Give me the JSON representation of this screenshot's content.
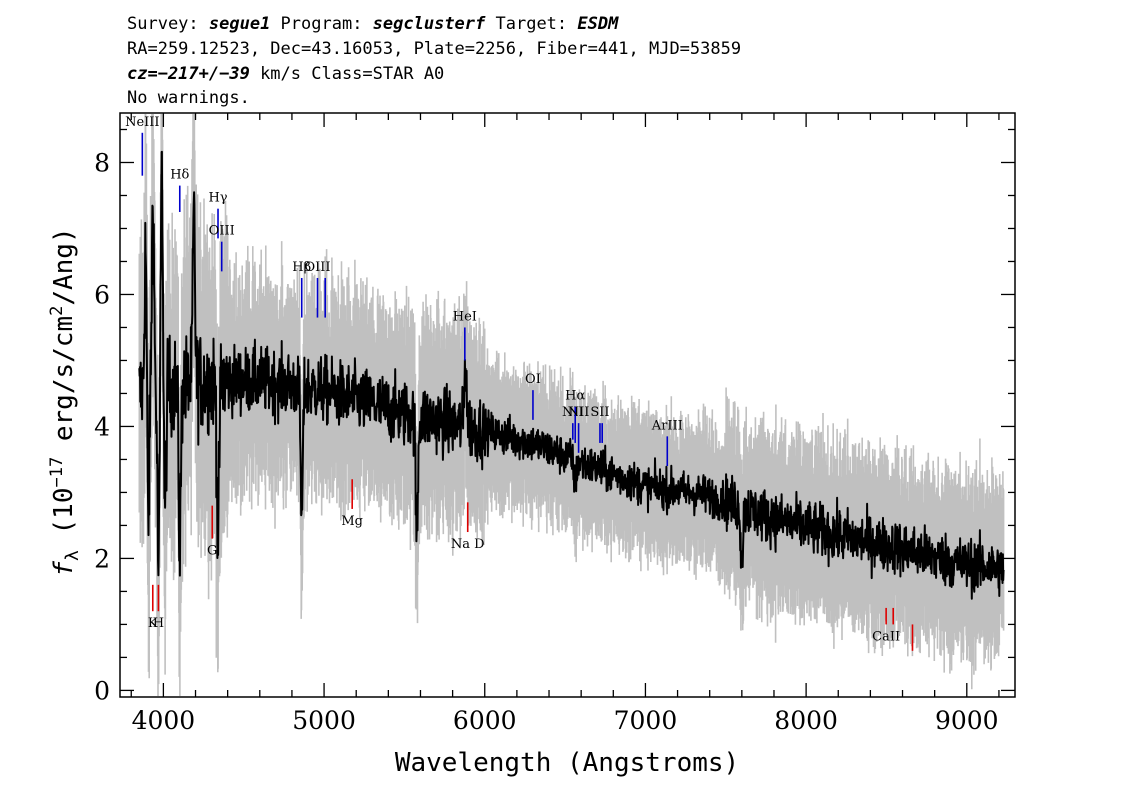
{
  "header": {
    "line1": {
      "survey_label": "Survey: ",
      "survey": "segue1",
      "program_label": " Program: ",
      "program": "segclusterf",
      "target_label": " Target: ",
      "target": "ESDM"
    },
    "line2": "RA=259.12523, Dec=43.16053, Plate=2256, Fiber=441, MJD=53859",
    "line3": {
      "cz": "cz=−217+/−39",
      "rest": " km/s Class=STAR A0"
    },
    "line4": "No warnings."
  },
  "colors": {
    "flux": "#000000",
    "error": "#c0c0c0",
    "emission": "#0000cc",
    "absorption": "#dd0000"
  },
  "chart_data": {
    "type": "line",
    "xlabel": "Wavelength (Angstroms)",
    "ylabel": "f_λ (10^-17 erg/s/cm^2/Ang)",
    "ylabel_parts": {
      "f": "f",
      "sub": "λ",
      "pre": " (10",
      "exp": "−17",
      "mid": " erg/s/cm",
      "exp2": "2",
      "post": "/Ang)"
    },
    "xlim": [
      3730,
      9300
    ],
    "ylim": [
      -0.1,
      8.75
    ],
    "x_ticks": [
      4000,
      5000,
      6000,
      7000,
      8000,
      9000
    ],
    "x_tick_labels": [
      "4000",
      "5000",
      "6000",
      "7000",
      "8000",
      "9000"
    ],
    "y_ticks": [
      0,
      2,
      4,
      6,
      8
    ],
    "y_tick_labels": [
      "0",
      "2",
      "4",
      "6",
      "8"
    ],
    "x_minor_step": 200,
    "y_minor_step": 0.5,
    "grid": false,
    "series": [
      {
        "role": "flux",
        "x_range": [
          3850,
          9230
        ],
        "continuum": {
          "x": [
            3850,
            4000,
            4300,
            4600,
            5000,
            5500,
            5900,
            6300,
            6600,
            7000,
            7400,
            7800,
            8200,
            8600,
            9000,
            9230
          ],
          "y": [
            4.5,
            4.6,
            4.7,
            4.7,
            4.55,
            4.2,
            4.0,
            3.75,
            3.45,
            3.1,
            2.95,
            2.6,
            2.35,
            2.15,
            1.9,
            1.85
          ]
        },
        "features": [
          {
            "x": 3890,
            "y": 6.9
          },
          {
            "x": 3905,
            "y": 2.4
          },
          {
            "x": 3935,
            "y": 7.4
          },
          {
            "x": 3970,
            "y": 1.8
          },
          {
            "x": 3990,
            "y": 7.9
          },
          {
            "x": 4010,
            "y": 2.7
          },
          {
            "x": 4102,
            "y": 2.2
          },
          {
            "x": 4190,
            "y": 7.2
          },
          {
            "x": 4340,
            "y": 2.3
          },
          {
            "x": 4861,
            "y": 2.65
          },
          {
            "x": 5577,
            "y": 2.3
          },
          {
            "x": 5880,
            "y": 5.0
          },
          {
            "x": 6563,
            "y": 3.1
          },
          {
            "x": 7600,
            "y": 1.95
          }
        ]
      },
      {
        "role": "error_envelope",
        "x_range": [
          3850,
          9230
        ]
      }
    ],
    "emission_lines": [
      {
        "label": "NeIII",
        "x": 3869,
        "y_bottom": 7.8,
        "y_top": 8.45
      },
      {
        "label": "Hδ",
        "x": 4102,
        "y_bottom": 7.25,
        "y_top": 7.65
      },
      {
        "label": "Hγ",
        "x": 4340,
        "y_bottom": 6.85,
        "y_top": 7.3
      },
      {
        "label": "OIII",
        "x": 4363,
        "y_bottom": 6.35,
        "y_top": 6.8
      },
      {
        "label": "Hβ",
        "x": 4861,
        "y_bottom": 5.65,
        "y_top": 6.25
      },
      {
        "label": "OIII",
        "x": 4959,
        "y_bottom": 5.65,
        "y_top": 6.25
      },
      {
        "label": "",
        "x": 5007,
        "y_bottom": 5.65,
        "y_top": 6.25
      },
      {
        "label": "HeI",
        "x": 5876,
        "y_bottom": 5.0,
        "y_top": 5.5
      },
      {
        "label": "OI",
        "x": 6300,
        "y_bottom": 4.1,
        "y_top": 4.55
      },
      {
        "label": "NII",
        "x": 6548,
        "y_bottom": 3.8,
        "y_top": 4.05
      },
      {
        "label": "Hα",
        "x": 6563,
        "y_bottom": 3.75,
        "y_top": 4.3
      },
      {
        "label": "NII",
        "x": 6584,
        "y_bottom": 3.6,
        "y_top": 4.05
      },
      {
        "label": "SII",
        "x": 6717,
        "y_bottom": 3.75,
        "y_top": 4.05
      },
      {
        "label": "",
        "x": 6731,
        "y_bottom": 3.75,
        "y_top": 4.05
      },
      {
        "label": "ArIII",
        "x": 7136,
        "y_bottom": 3.4,
        "y_top": 3.85
      }
    ],
    "absorption_lines": [
      {
        "label": "K",
        "x": 3934,
        "y_bottom": 1.2,
        "y_top": 1.6
      },
      {
        "label": "H",
        "x": 3969,
        "y_bottom": 1.2,
        "y_top": 1.6
      },
      {
        "label": "G",
        "x": 4304,
        "y_bottom": 2.3,
        "y_top": 2.8
      },
      {
        "label": "Mg",
        "x": 5175,
        "y_bottom": 2.75,
        "y_top": 3.2
      },
      {
        "label": "Na D",
        "x": 5894,
        "y_bottom": 2.4,
        "y_top": 2.85
      },
      {
        "label": "CaII",
        "x": 8498,
        "y_bottom": 1.0,
        "y_top": 1.25
      },
      {
        "label": "",
        "x": 8542,
        "y_bottom": 1.0,
        "y_top": 1.25
      },
      {
        "label": "",
        "x": 8662,
        "y_bottom": 0.6,
        "y_top": 1.0
      }
    ]
  }
}
